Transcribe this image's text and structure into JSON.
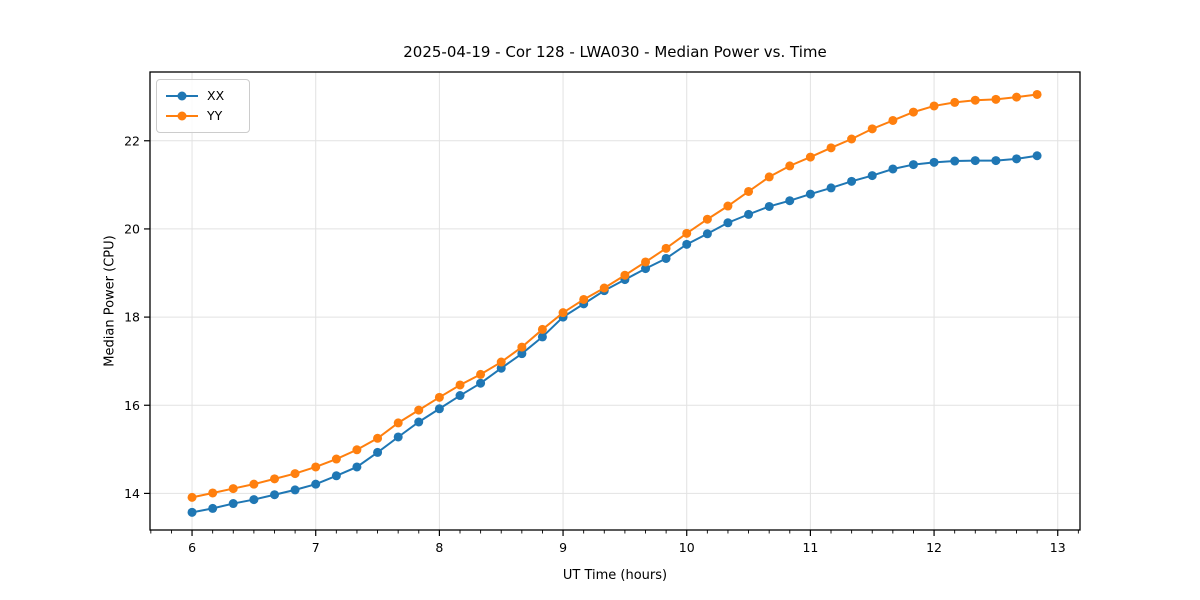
{
  "figure": {
    "kind": "line-plot-screenshot"
  },
  "chart_data": {
    "type": "line",
    "title": "2025-04-19 - Cor 128 - LWA030 - Median Power vs. Time",
    "xlabel": "UT Time (hours)",
    "ylabel": "Median Power (CPU)",
    "xlim": [
      5.66,
      13.18
    ],
    "ylim": [
      13.17,
      23.56
    ],
    "x_ticks": [
      6,
      7,
      8,
      9,
      10,
      11,
      12,
      13
    ],
    "y_ticks": [
      14,
      16,
      18,
      20,
      22
    ],
    "x_minor_step": 0.1667,
    "grid": true,
    "grid_color": "#e2e2e2",
    "spine_color": "#000000",
    "background": "#ffffff",
    "legend_position": "upper left",
    "marker": "circle",
    "x": [
      6.0,
      6.167,
      6.333,
      6.5,
      6.667,
      6.833,
      7.0,
      7.167,
      7.333,
      7.5,
      7.667,
      7.833,
      8.0,
      8.167,
      8.333,
      8.5,
      8.667,
      8.833,
      9.0,
      9.167,
      9.333,
      9.5,
      9.667,
      9.833,
      10.0,
      10.167,
      10.333,
      10.5,
      10.667,
      10.833,
      11.0,
      11.167,
      11.333,
      11.5,
      11.667,
      11.833,
      12.0,
      12.167,
      12.333,
      12.5,
      12.667,
      12.833
    ],
    "series": [
      {
        "name": "XX",
        "color": "#1f77b4",
        "values": [
          13.57,
          13.66,
          13.77,
          13.86,
          13.97,
          14.08,
          14.21,
          14.4,
          14.6,
          14.93,
          15.28,
          15.62,
          15.92,
          16.22,
          16.5,
          16.84,
          17.17,
          17.55,
          18.0,
          18.3,
          18.6,
          18.85,
          19.1,
          19.33,
          19.65,
          19.89,
          20.14,
          20.33,
          20.51,
          20.64,
          20.79,
          20.93,
          21.08,
          21.21,
          21.36,
          21.46,
          21.51,
          21.54,
          21.55,
          21.55,
          21.59,
          21.66
        ]
      },
      {
        "name": "YY",
        "color": "#ff7f0e",
        "values": [
          13.91,
          14.01,
          14.11,
          14.21,
          14.33,
          14.45,
          14.6,
          14.78,
          14.99,
          15.25,
          15.6,
          15.89,
          16.18,
          16.46,
          16.7,
          16.98,
          17.32,
          17.72,
          18.1,
          18.4,
          18.66,
          18.95,
          19.25,
          19.56,
          19.9,
          20.22,
          20.52,
          20.85,
          21.18,
          21.43,
          21.63,
          21.84,
          22.04,
          22.27,
          22.46,
          22.65,
          22.79,
          22.87,
          22.92,
          22.94,
          22.99,
          23.05
        ]
      }
    ]
  }
}
